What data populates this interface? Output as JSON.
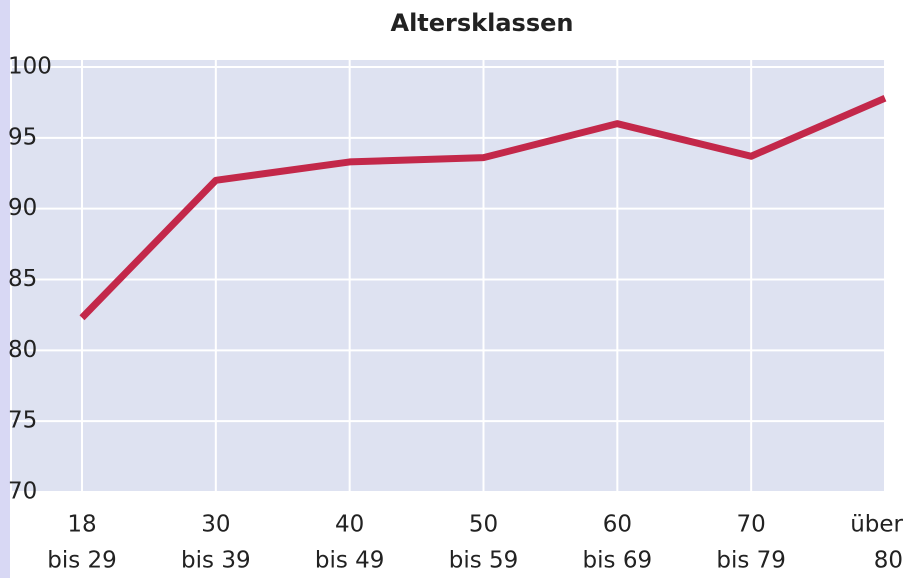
{
  "chart_data": {
    "type": "line",
    "title": "Altersklassen",
    "categories": [
      [
        "18",
        "bis 29"
      ],
      [
        "30",
        "bis 39"
      ],
      [
        "40",
        "bis 49"
      ],
      [
        "50",
        "bis 59"
      ],
      [
        "60",
        "bis 69"
      ],
      [
        "70",
        "bis 79"
      ],
      [
        "über",
        "80"
      ]
    ],
    "values": [
      82.3,
      92.0,
      93.3,
      93.6,
      96.0,
      93.7,
      97.8
    ],
    "color": "#c3284a",
    "ylim": [
      70,
      100
    ],
    "yticks": [
      70,
      75,
      80,
      85,
      90,
      95,
      100
    ],
    "grid": true
  }
}
